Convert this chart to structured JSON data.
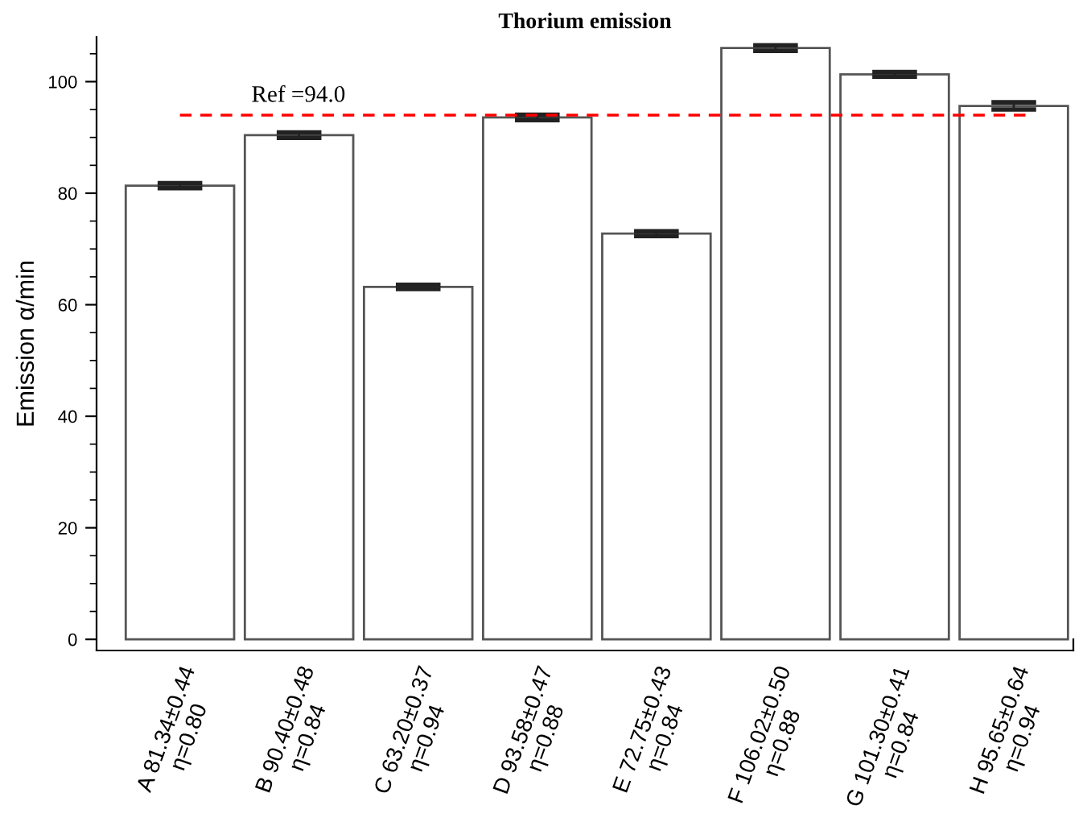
{
  "chart_data": {
    "type": "bar",
    "title": "Thorium emission",
    "ylabel": "Emission α/min",
    "categories": [
      "A 81.34±0.44\nη=0.80",
      "B 90.40±0.48\nη=0.84",
      "C 63.20±0.37\nη=0.94",
      "D 93.58±0.47\nη=0.88",
      "E 72.75±0.43\nη=0.84",
      "F 106.02±0.50\nη=0.88",
      "G 101.30±0.41\nη=0.84",
      "H 95.65±0.64\nη=0.94"
    ],
    "values": [
      81.34,
      90.4,
      63.2,
      93.58,
      72.75,
      106.02,
      101.3,
      95.65
    ],
    "errors": [
      0.44,
      0.48,
      0.37,
      0.47,
      0.43,
      0.5,
      0.41,
      0.64
    ],
    "color": "#ffffff",
    "ylim": [
      -2,
      108
    ],
    "yticks": [
      0,
      20,
      40,
      60,
      80,
      100
    ],
    "ref_lines": [
      {
        "axis": "y",
        "value": 94.0,
        "label": "Ref =94.0",
        "color": "#ff0000",
        "line_style": "dashed"
      }
    ],
    "grid": false,
    "legend": false
  }
}
